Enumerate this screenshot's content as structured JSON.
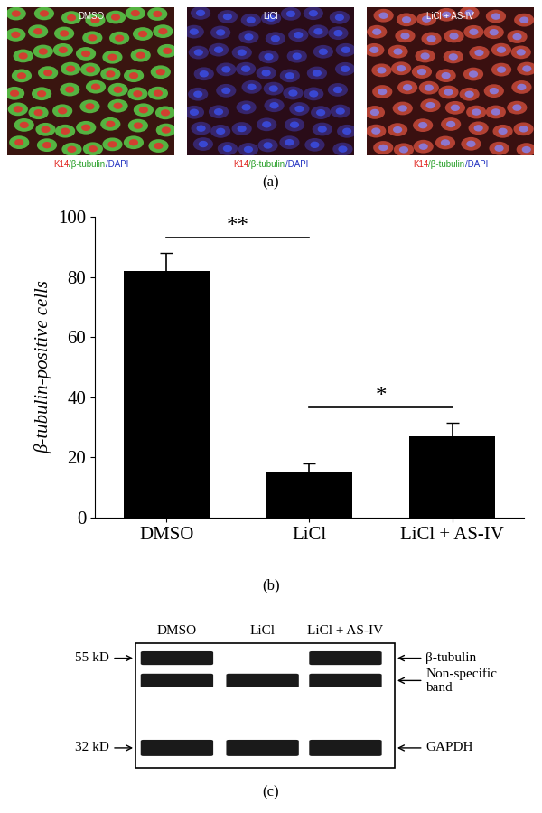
{
  "panel_a": {
    "label": "(a)",
    "images": [
      {
        "title": "DMSO"
      },
      {
        "title": "LiCl"
      },
      {
        "title": "LiCl + AS-IV"
      }
    ],
    "caption": [
      {
        "text": "K14",
        "color": "#e0201a"
      },
      {
        "text": "/β-tubulin",
        "color": "#2aa02a"
      },
      {
        "text": "/DAPI",
        "color": "#2030c0"
      }
    ]
  },
  "chart_data": {
    "type": "bar",
    "label": "(b)",
    "categories": [
      "DMSO",
      "LiCl",
      "LiCl + AS-IV"
    ],
    "values": [
      82,
      15,
      27
    ],
    "errors": [
      6,
      3,
      4.5
    ],
    "color": "#000000",
    "ylabel": "β-tubulin-positive cells",
    "ylim": [
      0,
      100
    ],
    "yticks": [
      0,
      20,
      40,
      60,
      80,
      100
    ],
    "significance": [
      {
        "between": [
          "DMSO",
          "LiCl"
        ],
        "label": "**"
      },
      {
        "between": [
          "LiCl",
          "LiCl + AS-IV"
        ],
        "label": "*"
      }
    ]
  },
  "panel_c": {
    "label": "(c)",
    "lanes": [
      "DMSO",
      "LiCl",
      "LiCl + AS-IV"
    ],
    "bands": [
      {
        "name": "β-tubulin",
        "present": [
          true,
          false,
          true
        ]
      },
      {
        "name": "Non-specific\nband",
        "present": [
          true,
          true,
          true
        ]
      },
      {
        "name": "GAPDH",
        "present": [
          true,
          true,
          true
        ]
      }
    ],
    "markers": [
      {
        "label": "55 kD",
        "band": "β-tubulin"
      },
      {
        "label": "32 kD",
        "band": "GAPDH"
      }
    ]
  }
}
